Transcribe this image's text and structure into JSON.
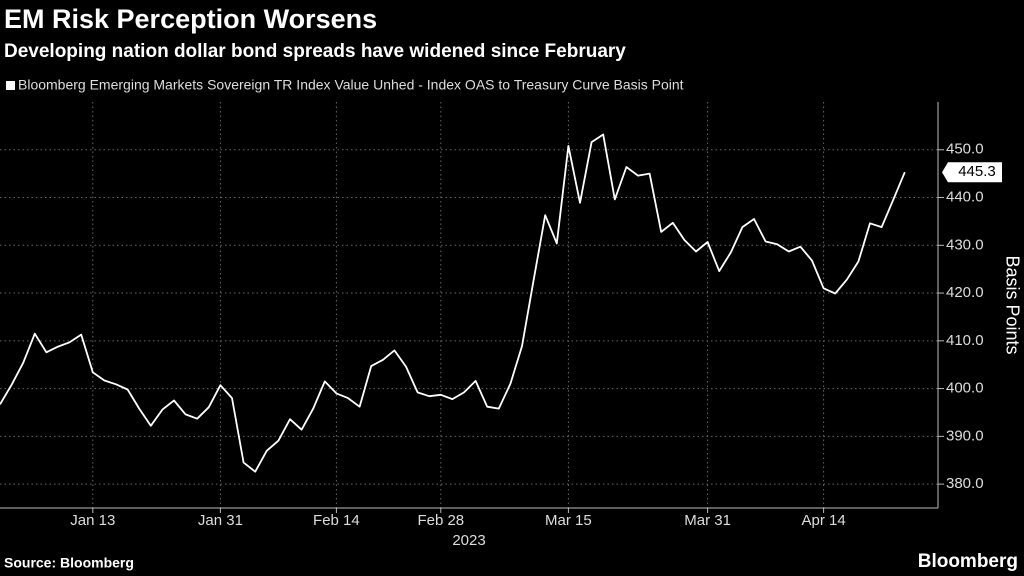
{
  "chart_data": {
    "type": "line",
    "title": "EM Risk Perception Worsens",
    "subtitle": "Developing nation dollar bond spreads have widened since February",
    "ylabel": "Basis Points",
    "xlabel": "2023",
    "source": "Source: Bloomberg",
    "brand": "Bloomberg",
    "grid": true,
    "x": [
      "2023-01-03",
      "2023-01-04",
      "2023-01-05",
      "2023-01-06",
      "2023-01-09",
      "2023-01-10",
      "2023-01-11",
      "2023-01-12",
      "2023-01-13",
      "2023-01-17",
      "2023-01-18",
      "2023-01-19",
      "2023-01-20",
      "2023-01-23",
      "2023-01-24",
      "2023-01-25",
      "2023-01-26",
      "2023-01-27",
      "2023-01-30",
      "2023-01-31",
      "2023-02-01",
      "2023-02-02",
      "2023-02-03",
      "2023-02-06",
      "2023-02-07",
      "2023-02-08",
      "2023-02-09",
      "2023-02-10",
      "2023-02-13",
      "2023-02-14",
      "2023-02-15",
      "2023-02-16",
      "2023-02-17",
      "2023-02-21",
      "2023-02-22",
      "2023-02-23",
      "2023-02-24",
      "2023-02-27",
      "2023-02-28",
      "2023-03-01",
      "2023-03-02",
      "2023-03-03",
      "2023-03-06",
      "2023-03-07",
      "2023-03-08",
      "2023-03-09",
      "2023-03-10",
      "2023-03-13",
      "2023-03-14",
      "2023-03-15",
      "2023-03-16",
      "2023-03-17",
      "2023-03-20",
      "2023-03-21",
      "2023-03-22",
      "2023-03-23",
      "2023-03-24",
      "2023-03-27",
      "2023-03-28",
      "2023-03-29",
      "2023-03-30",
      "2023-03-31",
      "2023-04-03",
      "2023-04-04",
      "2023-04-05",
      "2023-04-06",
      "2023-04-07",
      "2023-04-10",
      "2023-04-11",
      "2023-04-12",
      "2023-04-13",
      "2023-04-14",
      "2023-04-17",
      "2023-04-18",
      "2023-04-19",
      "2023-04-20",
      "2023-04-21",
      "2023-04-24",
      "2023-04-25"
    ],
    "series": [
      {
        "name": "Bloomberg Emerging Markets Sovereign TR Index Value Unhed - Index OAS to Treasury Curve Basis Point",
        "color": "#ffffff",
        "values": [
          396.7,
          400.8,
          405.4,
          411.5,
          407.6,
          408.8,
          409.7,
          411.3,
          403.4,
          401.7,
          400.9,
          399.8,
          395.8,
          392.2,
          395.6,
          397.5,
          394.6,
          393.7,
          396.1,
          400.7,
          398,
          384.5,
          382.6,
          387,
          389.1,
          393.6,
          391.4,
          395.8,
          401.5,
          399,
          398,
          396.2,
          404.7,
          406,
          408,
          404.6,
          399.2,
          398.4,
          398.7,
          397.8,
          399.2,
          401.6,
          396.2,
          395.8,
          401,
          408.9,
          422.7,
          436.3,
          430.4,
          450.8,
          438.9,
          451.6,
          453.2,
          439.6,
          446.4,
          444.6,
          445,
          432.8,
          434.7,
          431.1,
          428.7,
          430.7,
          424.6,
          428.5,
          433.8,
          435.5,
          430.8,
          430.2,
          428.7,
          429.7,
          426.8,
          421,
          419.9,
          422.8,
          426.6,
          434.6,
          433.8,
          439.5,
          445.3
        ]
      }
    ],
    "xticks": [
      {
        "value": "2023-01-13",
        "label": "Jan 13"
      },
      {
        "value": "2023-01-31",
        "label": "Jan 31"
      },
      {
        "value": "2023-02-14",
        "label": "Feb 14"
      },
      {
        "value": "2023-02-28",
        "label": "Feb 28"
      },
      {
        "value": "2023-03-15",
        "label": "Mar 15"
      },
      {
        "value": "2023-03-31",
        "label": "Mar 31"
      },
      {
        "value": "2023-04-14",
        "label": "Apr 14"
      }
    ],
    "ylim": [
      375,
      460
    ],
    "yticks": [
      {
        "value": 380,
        "label": "380.0"
      },
      {
        "value": 390,
        "label": "390.0"
      },
      {
        "value": 400,
        "label": "400.0"
      },
      {
        "value": 410,
        "label": "410.0"
      },
      {
        "value": 420,
        "label": "420.0"
      },
      {
        "value": 430,
        "label": "430.0"
      },
      {
        "value": 440,
        "label": "440.0"
      },
      {
        "value": 450,
        "label": "450.0"
      }
    ]
  }
}
